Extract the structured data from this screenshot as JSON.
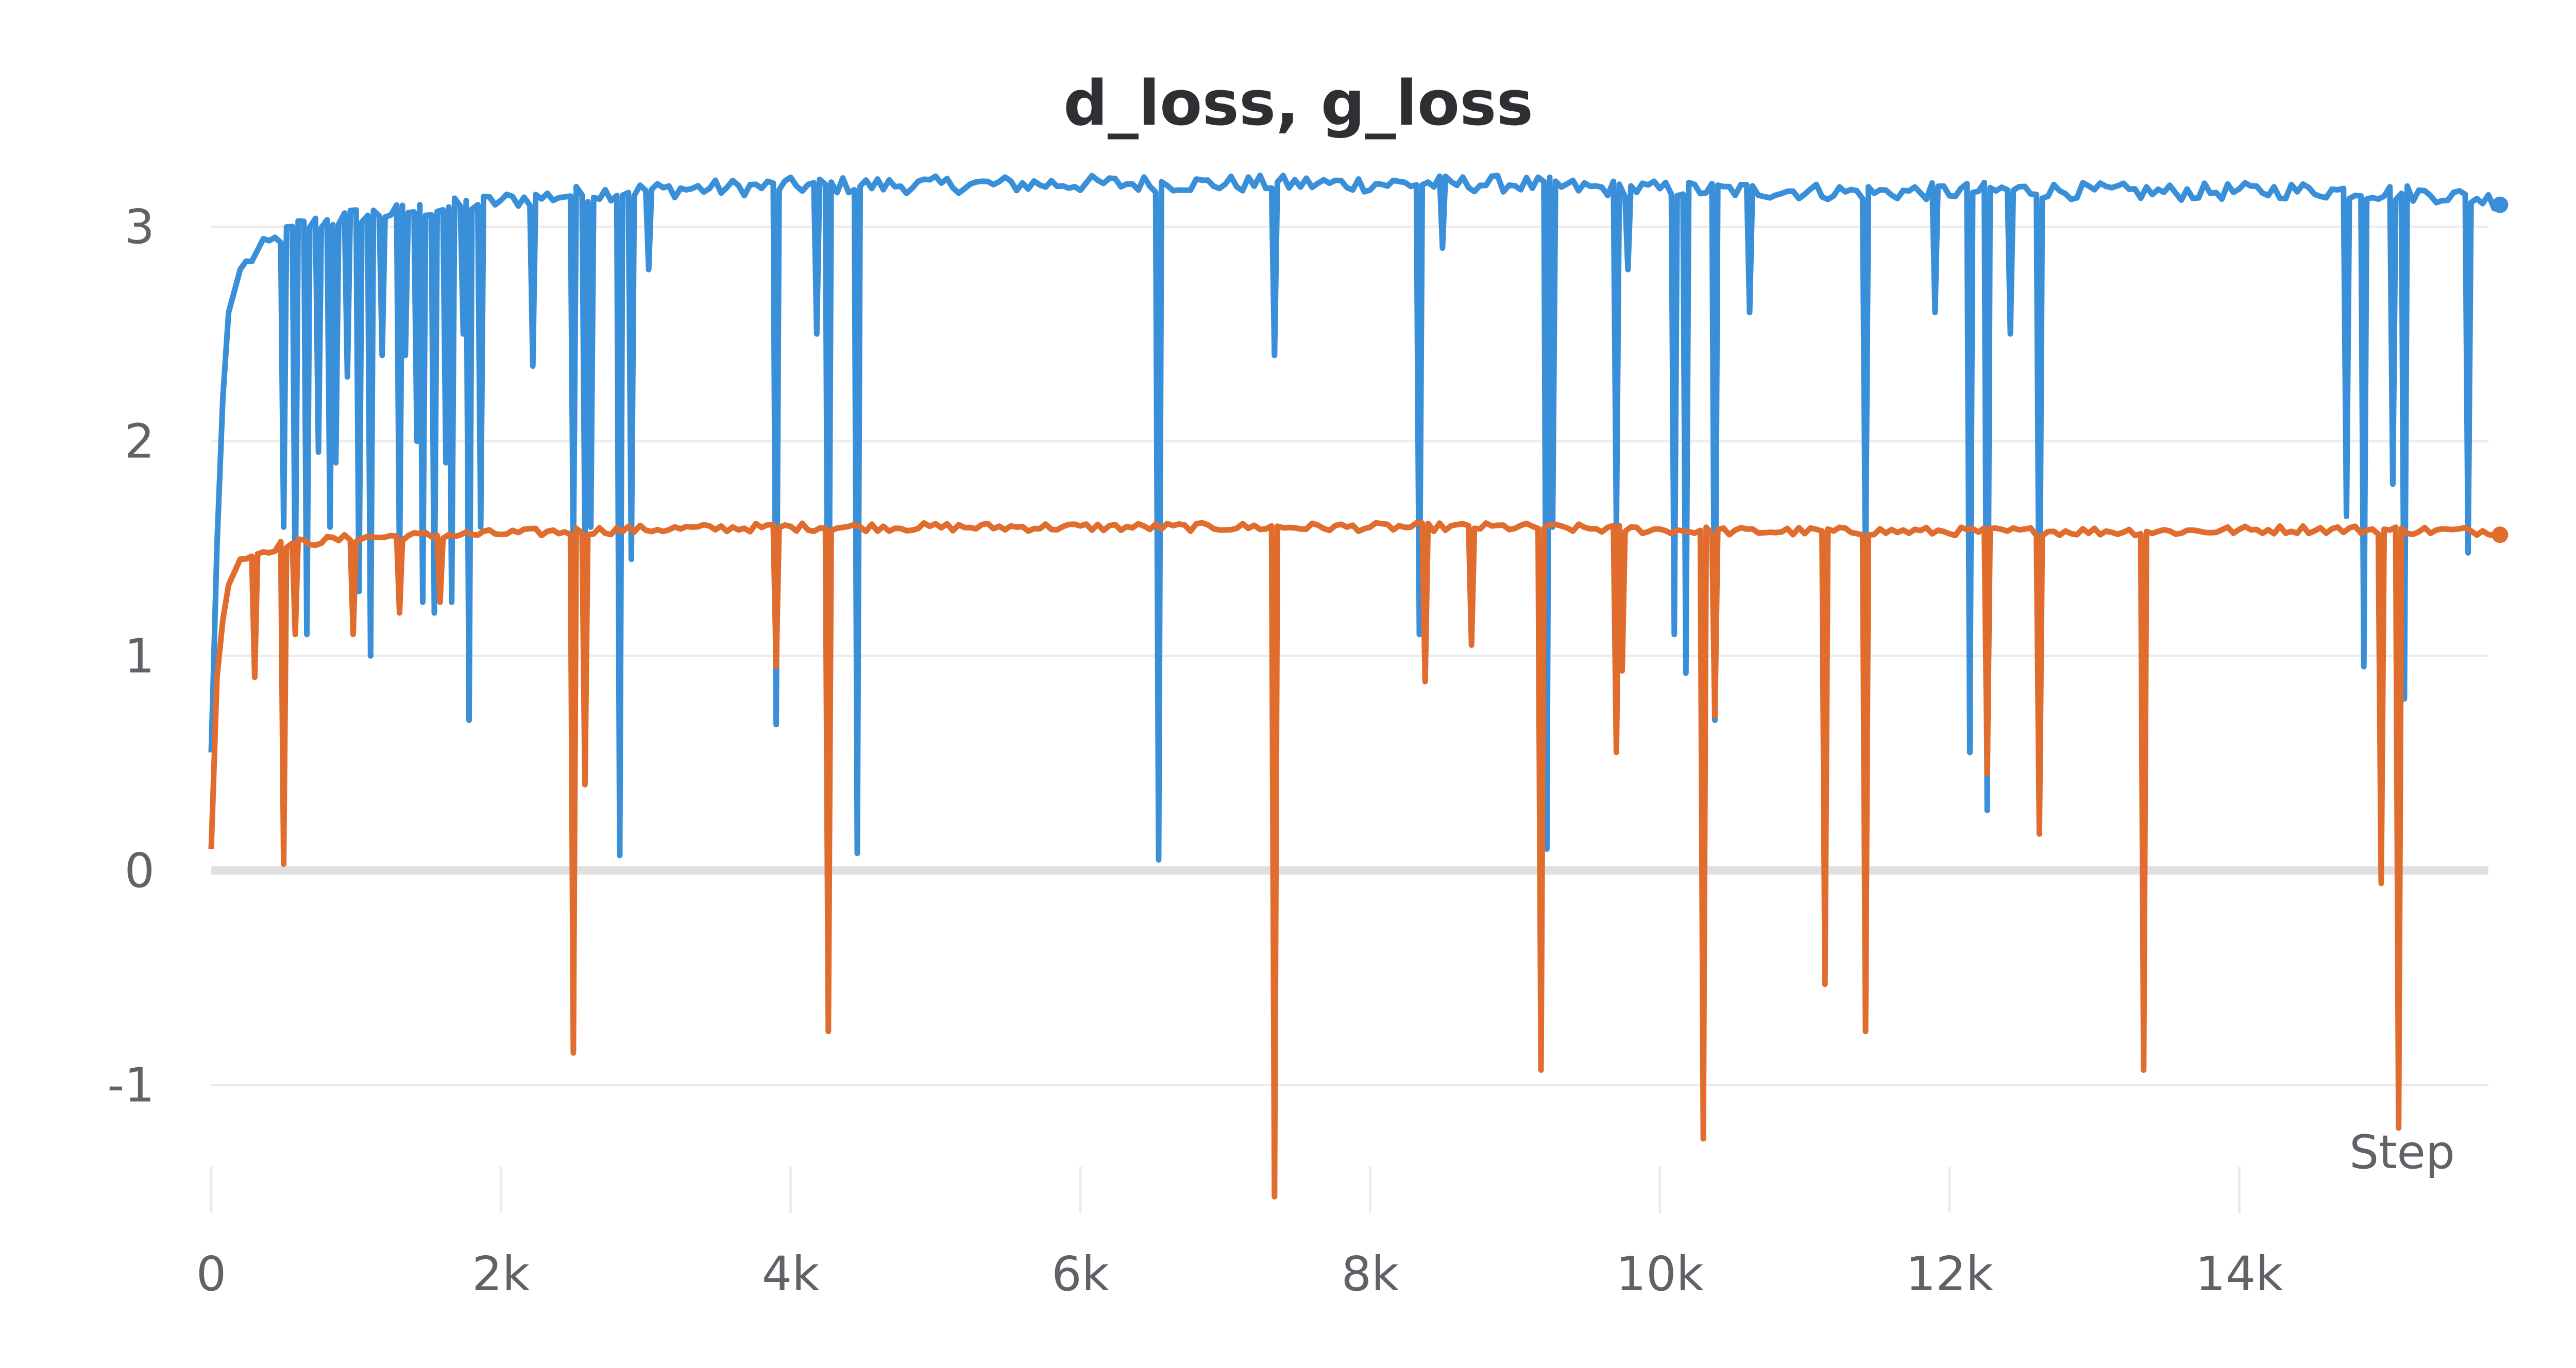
{
  "chart_data": {
    "type": "line",
    "title": "d_loss, g_loss",
    "xlabel": "Step",
    "ylabel": "",
    "xlim": [
      0,
      15800
    ],
    "ylim": [
      -1.5,
      3.3
    ],
    "x_ticks": [
      0,
      2000,
      4000,
      6000,
      8000,
      10000,
      12000,
      14000
    ],
    "x_tick_labels": [
      "0",
      "2k",
      "4k",
      "6k",
      "8k",
      "10k",
      "12k",
      "14k"
    ],
    "y_ticks": [
      -1,
      0,
      1,
      2,
      3
    ],
    "y_tick_labels": [
      "-1",
      "0",
      "1",
      "2",
      "3"
    ],
    "grid": true,
    "legend": "none",
    "colors": {
      "series_1": "#3a8fd9",
      "series_2": "#e06c2e",
      "zero_line": "#e0e0e0",
      "grid": "#ebebeb"
    },
    "series": [
      {
        "base": [
          [
            0,
            0.55
          ],
          [
            60,
            2.0
          ],
          [
            120,
            2.6
          ],
          [
            200,
            2.8
          ],
          [
            350,
            2.9
          ],
          [
            600,
            3.0
          ],
          [
            1000,
            3.05
          ],
          [
            1500,
            3.08
          ],
          [
            2000,
            3.12
          ],
          [
            2500,
            3.15
          ],
          [
            3000,
            3.17
          ],
          [
            4000,
            3.19
          ],
          [
            6000,
            3.2
          ],
          [
            8000,
            3.2
          ],
          [
            9000,
            3.2
          ],
          [
            9500,
            3.18
          ],
          [
            10500,
            3.17
          ],
          [
            11500,
            3.16
          ],
          [
            12500,
            3.17
          ],
          [
            13500,
            3.16
          ],
          [
            14500,
            3.17
          ],
          [
            15400,
            3.15
          ],
          [
            15800,
            3.12
          ]
        ],
        "noise": 0.04,
        "dips": [
          [
            470,
            1.6
          ],
          [
            560,
            1.3
          ],
          [
            640,
            1.1
          ],
          [
            700,
            1.95
          ],
          [
            780,
            1.6
          ],
          [
            840,
            1.9
          ],
          [
            900,
            2.3
          ],
          [
            1000,
            1.3
          ],
          [
            1080,
            1.0
          ],
          [
            1160,
            2.4
          ],
          [
            1260,
            1.4
          ],
          [
            1310,
            2.4
          ],
          [
            1380,
            2.0
          ],
          [
            1450,
            1.25
          ],
          [
            1530,
            1.2
          ],
          [
            1580,
            1.9
          ],
          [
            1640,
            1.25
          ],
          [
            1700,
            2.5
          ],
          [
            1750,
            0.7
          ],
          [
            1850,
            1.6
          ],
          [
            2200,
            2.35
          ],
          [
            2490,
            1.45
          ],
          [
            2550,
            1.55
          ],
          [
            2590,
            1.6
          ],
          [
            2800,
            0.07
          ],
          [
            2860,
            1.45
          ],
          [
            3000,
            2.8
          ],
          [
            3870,
            0.68
          ],
          [
            4150,
            2.5
          ],
          [
            4220,
            0.45
          ],
          [
            4440,
            0.08
          ],
          [
            6520,
            0.05
          ],
          [
            7300,
            2.4
          ],
          [
            8330,
            1.1
          ],
          [
            8470,
            2.9
          ],
          [
            9180,
            0.1
          ],
          [
            9230,
            1.6
          ],
          [
            9690,
            1.6
          ],
          [
            9760,
            2.8
          ],
          [
            10090,
            1.1
          ],
          [
            10150,
            0.92
          ],
          [
            10350,
            0.7
          ],
          [
            10610,
            2.6
          ],
          [
            11400,
            1.4
          ],
          [
            11880,
            2.6
          ],
          [
            12100,
            0.55
          ],
          [
            12230,
            0.28
          ],
          [
            12380,
            2.5
          ],
          [
            12580,
            0.92
          ],
          [
            14700,
            1.65
          ],
          [
            14850,
            0.95
          ],
          [
            15020,
            1.8
          ],
          [
            15130,
            0.8
          ],
          [
            15560,
            1.48
          ]
        ]
      },
      {
        "base": [
          [
            0,
            0.1
          ],
          [
            40,
            0.9
          ],
          [
            100,
            1.3
          ],
          [
            200,
            1.45
          ],
          [
            500,
            1.52
          ],
          [
            1000,
            1.55
          ],
          [
            2000,
            1.57
          ],
          [
            3000,
            1.59
          ],
          [
            4000,
            1.6
          ],
          [
            6000,
            1.6
          ],
          [
            8000,
            1.6
          ],
          [
            9000,
            1.6
          ],
          [
            10500,
            1.58
          ],
          [
            12000,
            1.58
          ],
          [
            13500,
            1.58
          ],
          [
            14500,
            1.59
          ],
          [
            15800,
            1.58
          ]
        ],
        "noise": 0.02,
        "dips": [
          [
            270,
            0.9
          ],
          [
            460,
            0.03
          ],
          [
            560,
            1.1
          ],
          [
            970,
            1.1
          ],
          [
            1280,
            1.2
          ],
          [
            1540,
            1.25
          ],
          [
            2480,
            -0.85
          ],
          [
            2560,
            0.4
          ],
          [
            3870,
            0.95
          ],
          [
            4220,
            -0.75
          ],
          [
            7300,
            -1.52
          ],
          [
            8350,
            0.88
          ],
          [
            8670,
            1.05
          ],
          [
            9160,
            -0.93
          ],
          [
            9660,
            0.55
          ],
          [
            9710,
            0.93
          ],
          [
            10290,
            -1.25
          ],
          [
            10360,
            0.72
          ],
          [
            11100,
            -0.53
          ],
          [
            11400,
            -0.75
          ],
          [
            12230,
            0.45
          ],
          [
            12600,
            0.17
          ],
          [
            13300,
            -0.93
          ],
          [
            14970,
            -0.06
          ],
          [
            15060,
            -1.2
          ]
        ]
      }
    ]
  }
}
